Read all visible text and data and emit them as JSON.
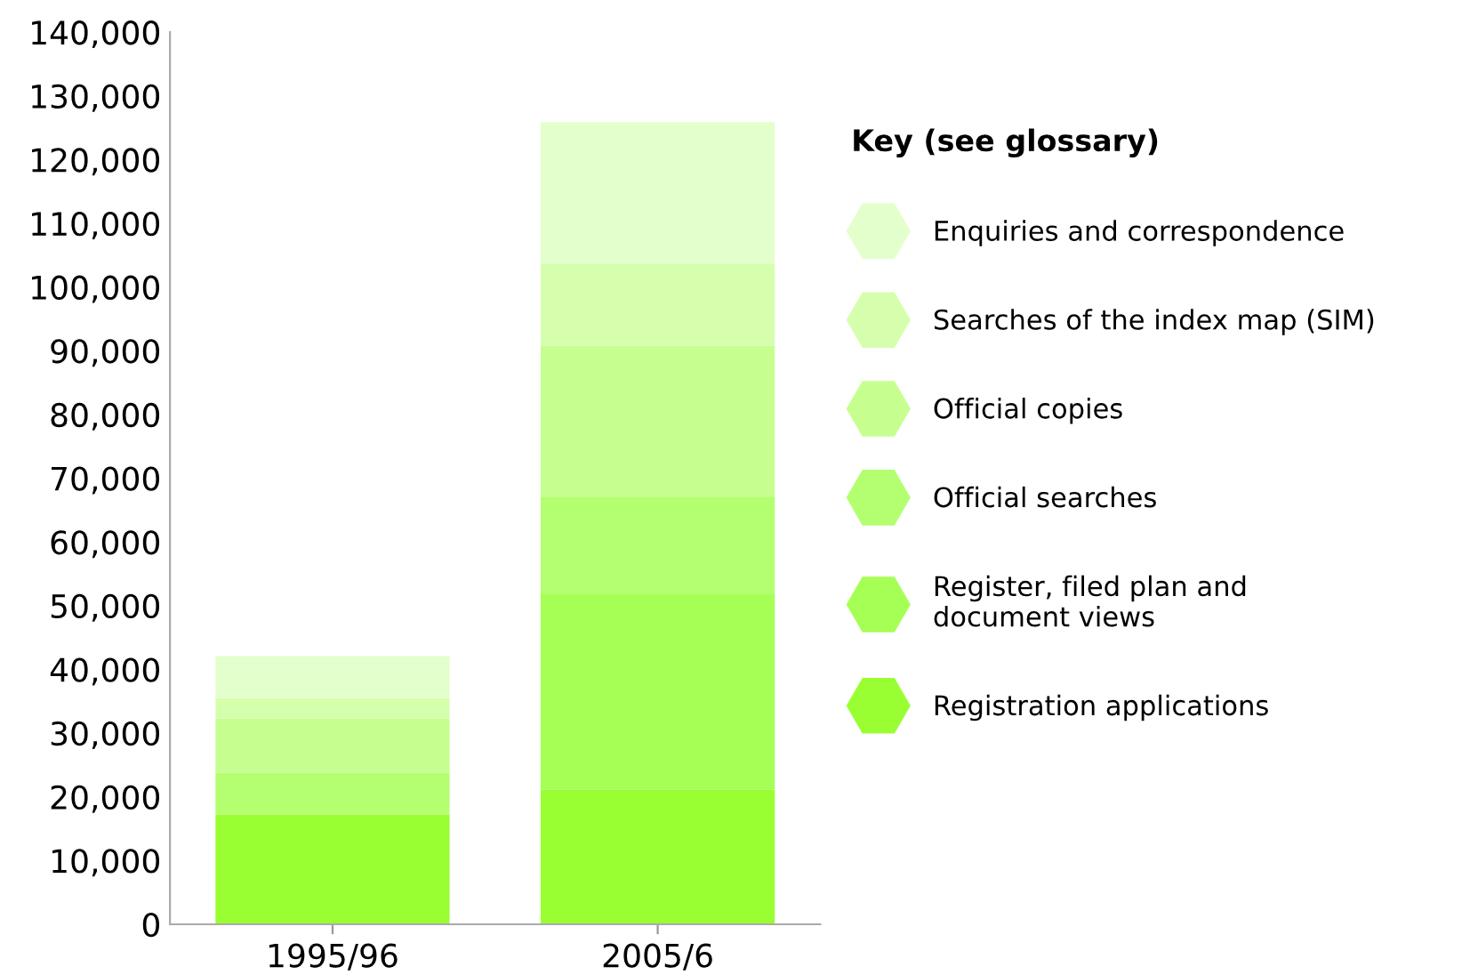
{
  "chart_data": {
    "type": "bar",
    "stacked": true,
    "categories": [
      "1995/96",
      "2005/6"
    ],
    "series": [
      {
        "name": "Registration applications",
        "color": "#99ff33",
        "values": [
          17200,
          21100
        ]
      },
      {
        "name": "Register, filed plan and\ndocument views",
        "color": "#a6ff55",
        "values": [
          null,
          30700
        ]
      },
      {
        "name": "Official searches",
        "color": "#b3ff70",
        "values": [
          6600,
          15200
        ]
      },
      {
        "name": "Official copies",
        "color": "#c6ff8f",
        "values": [
          8500,
          23800
        ]
      },
      {
        "name": "Searches of the index map (SIM)",
        "color": "#d6ffad",
        "values": [
          3200,
          12800
        ]
      },
      {
        "name": "Enquiries and correspondence",
        "color": "#e3ffcc",
        "values": [
          6600,
          22300
        ]
      }
    ],
    "legend_title": "Key (see glossary)",
    "legend": "right",
    "grid": false,
    "ylim": [
      0,
      140000
    ],
    "yticks": [
      {
        "value": 0,
        "label": "0"
      },
      {
        "value": 10000,
        "label": "10,000"
      },
      {
        "value": 20000,
        "label": "20,000"
      },
      {
        "value": 30000,
        "label": "30,000"
      },
      {
        "value": 40000,
        "label": "40,000"
      },
      {
        "value": 50000,
        "label": "50,000"
      },
      {
        "value": 60000,
        "label": "60,000"
      },
      {
        "value": 70000,
        "label": "70,000"
      },
      {
        "value": 80000,
        "label": "80,000"
      },
      {
        "value": 90000,
        "label": "90,000"
      },
      {
        "value": 100000,
        "label": "100,000"
      },
      {
        "value": 110000,
        "label": "110,000"
      },
      {
        "value": 120000,
        "label": "120,000"
      },
      {
        "value": 130000,
        "label": "130,000"
      },
      {
        "value": 140000,
        "label": "140,000"
      }
    ]
  }
}
